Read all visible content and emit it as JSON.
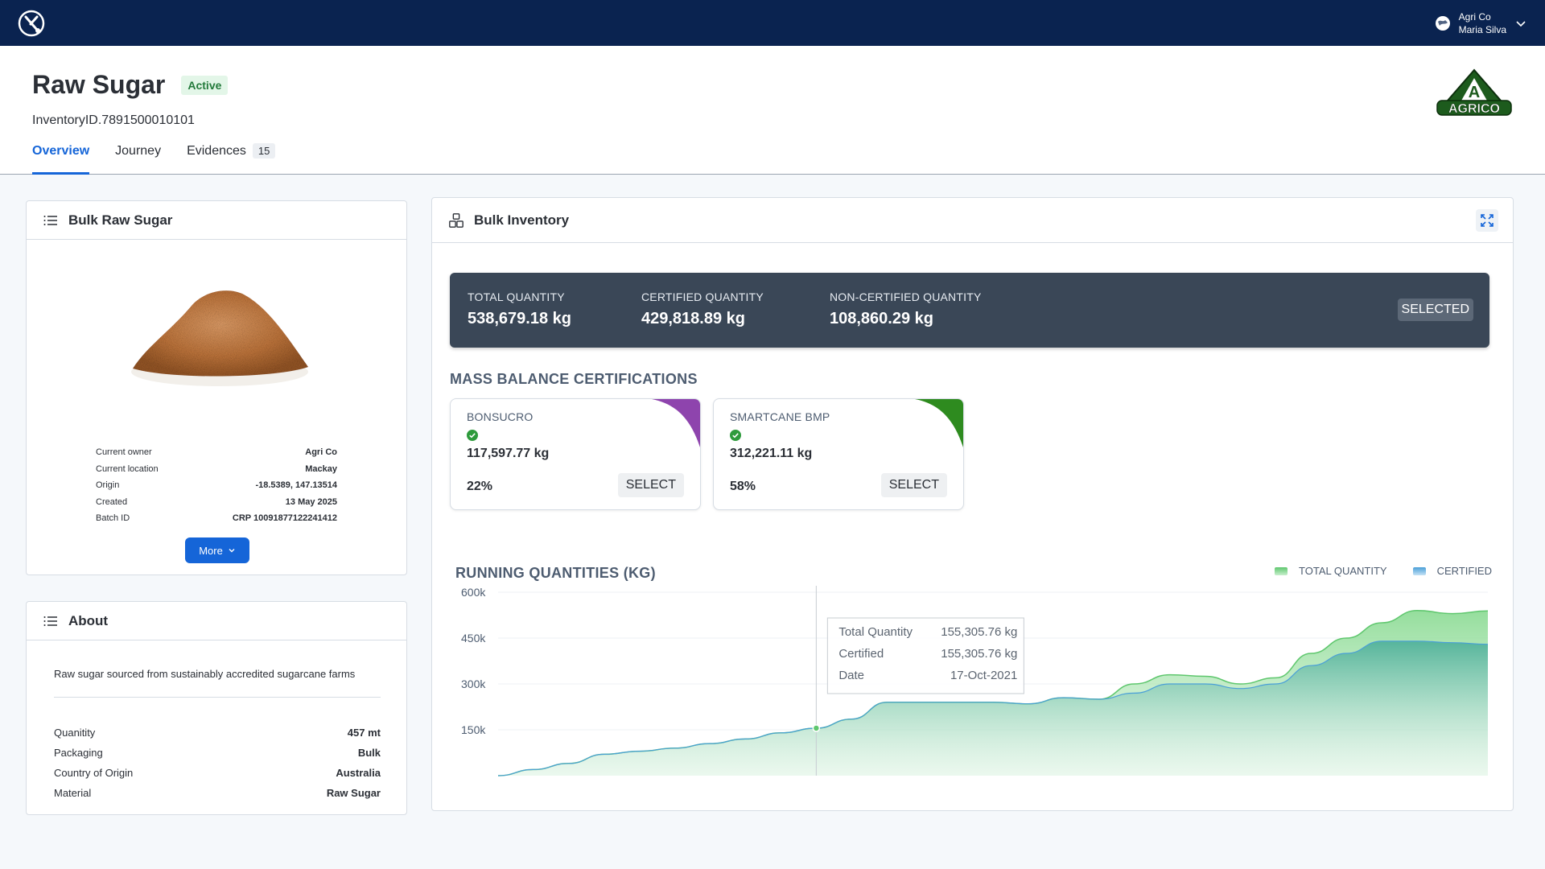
{
  "topbar": {
    "org": "Agri Co",
    "user": "Maria Silva"
  },
  "header": {
    "title": "Raw Sugar",
    "status": "Active",
    "inventory_id": "InventoryID.7891500010101",
    "tabs": [
      {
        "label": "Overview",
        "active": true
      },
      {
        "label": "Journey",
        "active": false
      },
      {
        "label": "Evidences",
        "count": "15",
        "active": false
      }
    ],
    "brand_logo_text": "AGRICO"
  },
  "bulk_card": {
    "title": "Bulk Raw Sugar",
    "details": [
      {
        "label": "Current owner",
        "value": "Agri Co"
      },
      {
        "label": "Current location",
        "value": "Mackay"
      },
      {
        "label": "Origin",
        "value": "-18.5389, 147.13514"
      },
      {
        "label": "Created",
        "value": "13 May 2025"
      },
      {
        "label": "Batch ID",
        "value": "CRP 10091877122241412"
      }
    ],
    "more_label": "More"
  },
  "about_card": {
    "title": "About",
    "description": "Raw sugar sourced from sustainably accredited sugarcane farms",
    "rows": [
      {
        "label": "Quanitity",
        "value": "457 mt"
      },
      {
        "label": "Packaging",
        "value": "Bulk"
      },
      {
        "label": "Country of Origin",
        "value": "Australia"
      },
      {
        "label": "Material",
        "value": "Raw Sugar"
      }
    ]
  },
  "inventory": {
    "title": "Bulk Inventory",
    "summary": [
      {
        "label": "TOTAL QUANTITY",
        "value": "538,679.18 kg"
      },
      {
        "label": "CERTIFIED QUANTITY",
        "value": "429,818.89 kg"
      },
      {
        "label": "NON-CERTIFIED QUANTITY",
        "value": "108,860.29 kg"
      }
    ],
    "selected_label": "SELECTED",
    "mass_balance_title": "MASS BALANCE CERTIFICATIONS",
    "certifications": [
      {
        "name": "BONSUCRO",
        "quantity": "117,597.77 kg",
        "percent": "22%",
        "select_label": "SELECT",
        "color": "#8e44ad"
      },
      {
        "name": "SMARTCANE BMP",
        "quantity": "312,221.11 kg",
        "percent": "58%",
        "select_label": "SELECT",
        "color": "#2e8b1f"
      }
    ]
  },
  "colors": {
    "topbar": "#0a2350",
    "accent": "#1565d8",
    "total_series": "#5fc76e",
    "certified_series": "#4a9fd8"
  },
  "chart_data": {
    "type": "area",
    "title": "RUNNING QUANTITIES (KG)",
    "yticks": [
      "600k",
      "450k",
      "300k",
      "150k"
    ],
    "ylim": [
      0,
      600000
    ],
    "legend_placement": "top-right",
    "series": [
      {
        "name": "TOTAL QUANTITY",
        "values": [
          0,
          20000,
          40000,
          70000,
          80000,
          90000,
          105000,
          120000,
          140000,
          155305,
          185000,
          240000,
          240000,
          240000,
          240000,
          235000,
          255000,
          250000,
          300000,
          330000,
          325000,
          300000,
          320000,
          400000,
          450000,
          500000,
          540000,
          530000,
          538679
        ]
      },
      {
        "name": "CERTIFIED",
        "values": [
          0,
          20000,
          40000,
          70000,
          80000,
          90000,
          105000,
          120000,
          140000,
          155305,
          185000,
          240000,
          240000,
          240000,
          240000,
          235000,
          255000,
          250000,
          270000,
          300000,
          300000,
          285000,
          300000,
          360000,
          400000,
          440000,
          440000,
          435000,
          429819
        ]
      }
    ],
    "tooltip": {
      "index": 9,
      "rows": [
        {
          "label": "Total Quantity",
          "value": "155,305.76 kg"
        },
        {
          "label": "Certified",
          "value": "155,305.76 kg"
        },
        {
          "label": "Date",
          "value": "17-Oct-2021"
        }
      ]
    }
  }
}
